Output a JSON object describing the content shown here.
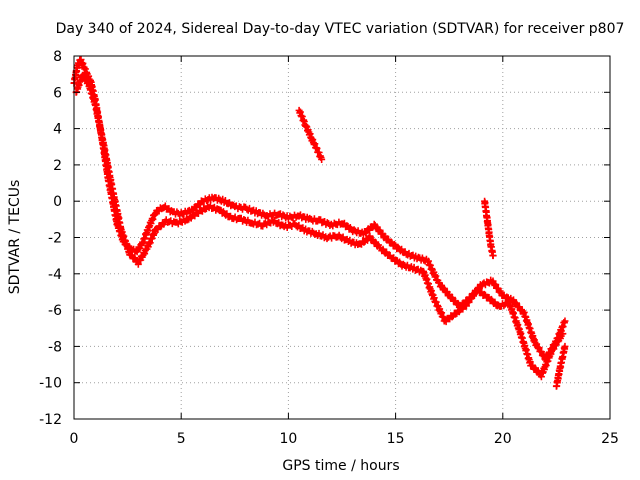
{
  "chart_data": {
    "type": "scatter",
    "title": "Day 340 of 2024, Sidereal Day-to-day VTEC variation (SDTVAR) for receiver p807",
    "xlabel": "GPS time / hours",
    "ylabel": "SDTVAR / TECUs",
    "xlim": [
      0,
      25
    ],
    "ylim": [
      -12,
      8
    ],
    "xticks": [
      0,
      5,
      10,
      15,
      20,
      25
    ],
    "yticks": [
      -12,
      -10,
      -8,
      -6,
      -4,
      -2,
      0,
      2,
      4,
      6,
      8
    ],
    "grid": true,
    "marker": "+",
    "series": [
      {
        "name": "SDTVAR",
        "color": "#ff0000",
        "tracks": [
          {
            "x": [
              0.0,
              0.15,
              0.3,
              0.5,
              0.8,
              1.0,
              1.3,
              1.6,
              2.0,
              2.3,
              2.6,
              2.9,
              3.2,
              3.5,
              3.8,
              4.2,
              4.6,
              5.0,
              5.5,
              6.0,
              6.5,
              7.0,
              7.5,
              8.0,
              8.5,
              9.0,
              9.5,
              10.0,
              10.5,
              11.0,
              11.5,
              12.0,
              12.5,
              13.0,
              13.5,
              14.0,
              14.5,
              15.0,
              15.5,
              16.0,
              16.5,
              17.0,
              17.5,
              18.0,
              18.5,
              19.0,
              19.5,
              20.0,
              20.5,
              21.0,
              21.5,
              22.0,
              22.5,
              22.9
            ],
            "y": [
              6.5,
              7.4,
              7.8,
              7.3,
              6.5,
              5.5,
              3.5,
              1.2,
              -1.2,
              -2.2,
              -2.6,
              -2.8,
              -2.3,
              -1.4,
              -0.6,
              -0.3,
              -0.6,
              -0.7,
              -0.5,
              0.0,
              0.2,
              0.0,
              -0.3,
              -0.4,
              -0.6,
              -0.8,
              -0.7,
              -0.9,
              -0.8,
              -1.0,
              -1.1,
              -1.3,
              -1.2,
              -1.6,
              -1.8,
              -1.3,
              -2.0,
              -2.5,
              -2.9,
              -3.1,
              -3.3,
              -4.5,
              -5.2,
              -5.8,
              -5.3,
              -4.6,
              -4.4,
              -5.2,
              -5.5,
              -6.2,
              -7.8,
              -8.7,
              -7.7,
              -6.6
            ]
          },
          {
            "x": [
              0.1,
              0.4,
              0.7,
              1.0,
              1.4,
              1.8,
              2.2,
              2.6,
              3.0,
              3.4,
              3.8,
              4.3,
              4.8,
              5.3,
              5.8,
              6.3,
              6.8,
              7.3,
              7.8,
              8.3,
              8.8,
              9.3,
              9.8,
              10.3,
              10.8,
              11.3,
              11.8,
              12.3,
              12.8,
              13.3,
              13.8,
              14.3,
              14.8,
              15.3,
              15.8,
              16.3,
              16.8,
              17.3,
              17.8,
              18.3,
              18.8,
              19.3,
              19.8,
              20.3,
              20.8,
              21.3,
              21.8,
              22.3,
              22.8
            ],
            "y": [
              6.0,
              7.0,
              6.4,
              5.3,
              3.0,
              0.6,
              -1.6,
              -2.9,
              -3.4,
              -2.6,
              -1.6,
              -1.1,
              -1.2,
              -1.0,
              -0.6,
              -0.3,
              -0.5,
              -0.9,
              -1.0,
              -1.2,
              -1.3,
              -1.1,
              -1.4,
              -1.3,
              -1.6,
              -1.8,
              -2.0,
              -1.9,
              -2.2,
              -2.4,
              -2.0,
              -2.6,
              -3.1,
              -3.5,
              -3.7,
              -3.9,
              -5.4,
              -6.6,
              -6.2,
              -5.7,
              -4.9,
              -5.3,
              -5.8,
              -5.6,
              -7.2,
              -9.0,
              -9.6,
              -8.2,
              -7.3
            ]
          },
          {
            "x": [
              10.5,
              10.8,
              11.1,
              11.4,
              11.55
            ],
            "y": [
              5.0,
              4.2,
              3.4,
              2.7,
              2.3
            ]
          },
          {
            "x": [
              19.15,
              19.25,
              19.35,
              19.45,
              19.55
            ],
            "y": [
              0.0,
              -0.8,
              -1.7,
              -2.5,
              -3.0
            ]
          },
          {
            "x": [
              22.5,
              22.65,
              22.8,
              22.9
            ],
            "y": [
              -10.2,
              -9.3,
              -8.5,
              -8.0
            ]
          }
        ]
      }
    ]
  }
}
